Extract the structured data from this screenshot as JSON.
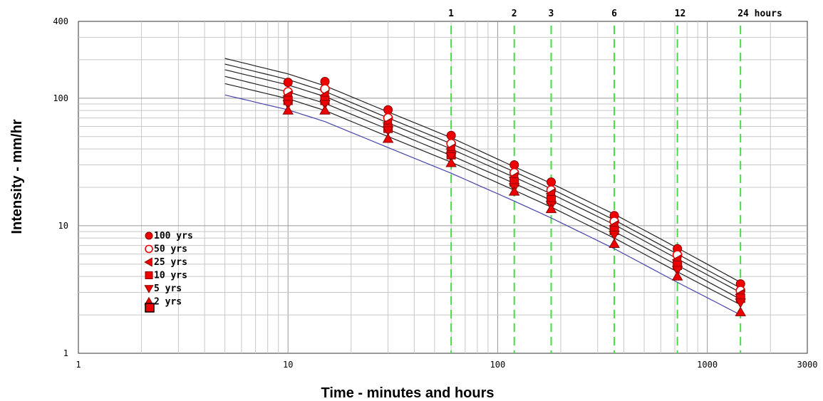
{
  "chart_data": {
    "type": "line",
    "xlabel": "Time - minutes and hours",
    "ylabel": "Intensity -  mm/hr",
    "xscale": "log",
    "yscale": "log",
    "xlim": [
      1,
      3000
    ],
    "ylim": [
      1,
      400
    ],
    "x_ticks": [
      {
        "value": 1,
        "label": "1"
      },
      {
        "value": 10,
        "label": "10"
      },
      {
        "value": 100,
        "label": "100"
      },
      {
        "value": 1000,
        "label": "1000"
      },
      {
        "value": 3000,
        "label": "3000"
      }
    ],
    "y_ticks": [
      {
        "value": 1,
        "label": "1"
      },
      {
        "value": 10,
        "label": "10"
      },
      {
        "value": 100,
        "label": "100"
      },
      {
        "value": 400,
        "label": "400"
      }
    ],
    "grid": true,
    "duration_markers": [
      {
        "x": 60,
        "label": "1"
      },
      {
        "x": 120,
        "label": "2"
      },
      {
        "x": 180,
        "label": "3"
      },
      {
        "x": 360,
        "label": "6"
      },
      {
        "x": 720,
        "label": "12"
      },
      {
        "x": 1440,
        "label": "24 hours"
      }
    ],
    "marker_color": "#44dd44",
    "curve_x": [
      5,
      10,
      15,
      30,
      60,
      120,
      180,
      360,
      720,
      1440
    ],
    "point_x": [
      10,
      15,
      30,
      60,
      120,
      180,
      360,
      720,
      1440
    ],
    "legend_position": "left-middle",
    "series": [
      {
        "name": "100 yrs",
        "marker": "circle",
        "line_color": "#222222",
        "curve": [
          205,
          155,
          125,
          78,
          49,
          29,
          21.5,
          12.3,
          6.7,
          3.6
        ],
        "points": [
          133,
          135,
          81,
          51,
          30,
          22,
          12,
          6.6,
          3.5
        ]
      },
      {
        "name": "50 yrs",
        "marker": "circle-open",
        "line_color": "#222222",
        "curve": [
          185,
          140,
          113,
          70,
          44,
          26.5,
          19.5,
          11.1,
          6.0,
          3.25
        ],
        "points": [
          112,
          118,
          70,
          44,
          26,
          19,
          10.8,
          5.9,
          3.1
        ]
      },
      {
        "name": "25 yrs",
        "marker": "triangle-left",
        "line_color": "#222222",
        "curve": [
          167,
          127,
          103,
          64,
          40,
          24,
          17.8,
          10.2,
          5.5,
          3.0
        ],
        "points": [
          104,
          105,
          64,
          40,
          24,
          17.8,
          10,
          5.4,
          2.9
        ]
      },
      {
        "name": "10 yrs",
        "marker": "square",
        "line_color": "#222222",
        "curve": [
          148,
          112,
          91,
          57,
          35.5,
          21.5,
          15.8,
          9.0,
          4.9,
          2.65
        ],
        "points": [
          96,
          96,
          58,
          36,
          22,
          16,
          9.2,
          4.9,
          2.7
        ]
      },
      {
        "name": "5 yrs",
        "marker": "triangle-down",
        "line_color": "#222222",
        "curve": [
          130,
          99,
          80,
          50,
          31.5,
          19,
          14,
          8.0,
          4.35,
          2.4
        ],
        "points": [
          90,
          90,
          56,
          35,
          20,
          14.5,
          8.5,
          4.5,
          2.5
        ]
      },
      {
        "name": "2 yrs",
        "marker": "triangle-up",
        "line_color": "#4444aa",
        "curve": [
          106,
          81,
          65.5,
          41,
          25.8,
          15.6,
          11.5,
          6.6,
          3.6,
          2.0
        ],
        "points": [
          80,
          80,
          48,
          31,
          18.5,
          13.5,
          7.2,
          4.0,
          2.1
        ]
      }
    ],
    "point_color": "#ee0000",
    "point_stroke": "#880000"
  }
}
